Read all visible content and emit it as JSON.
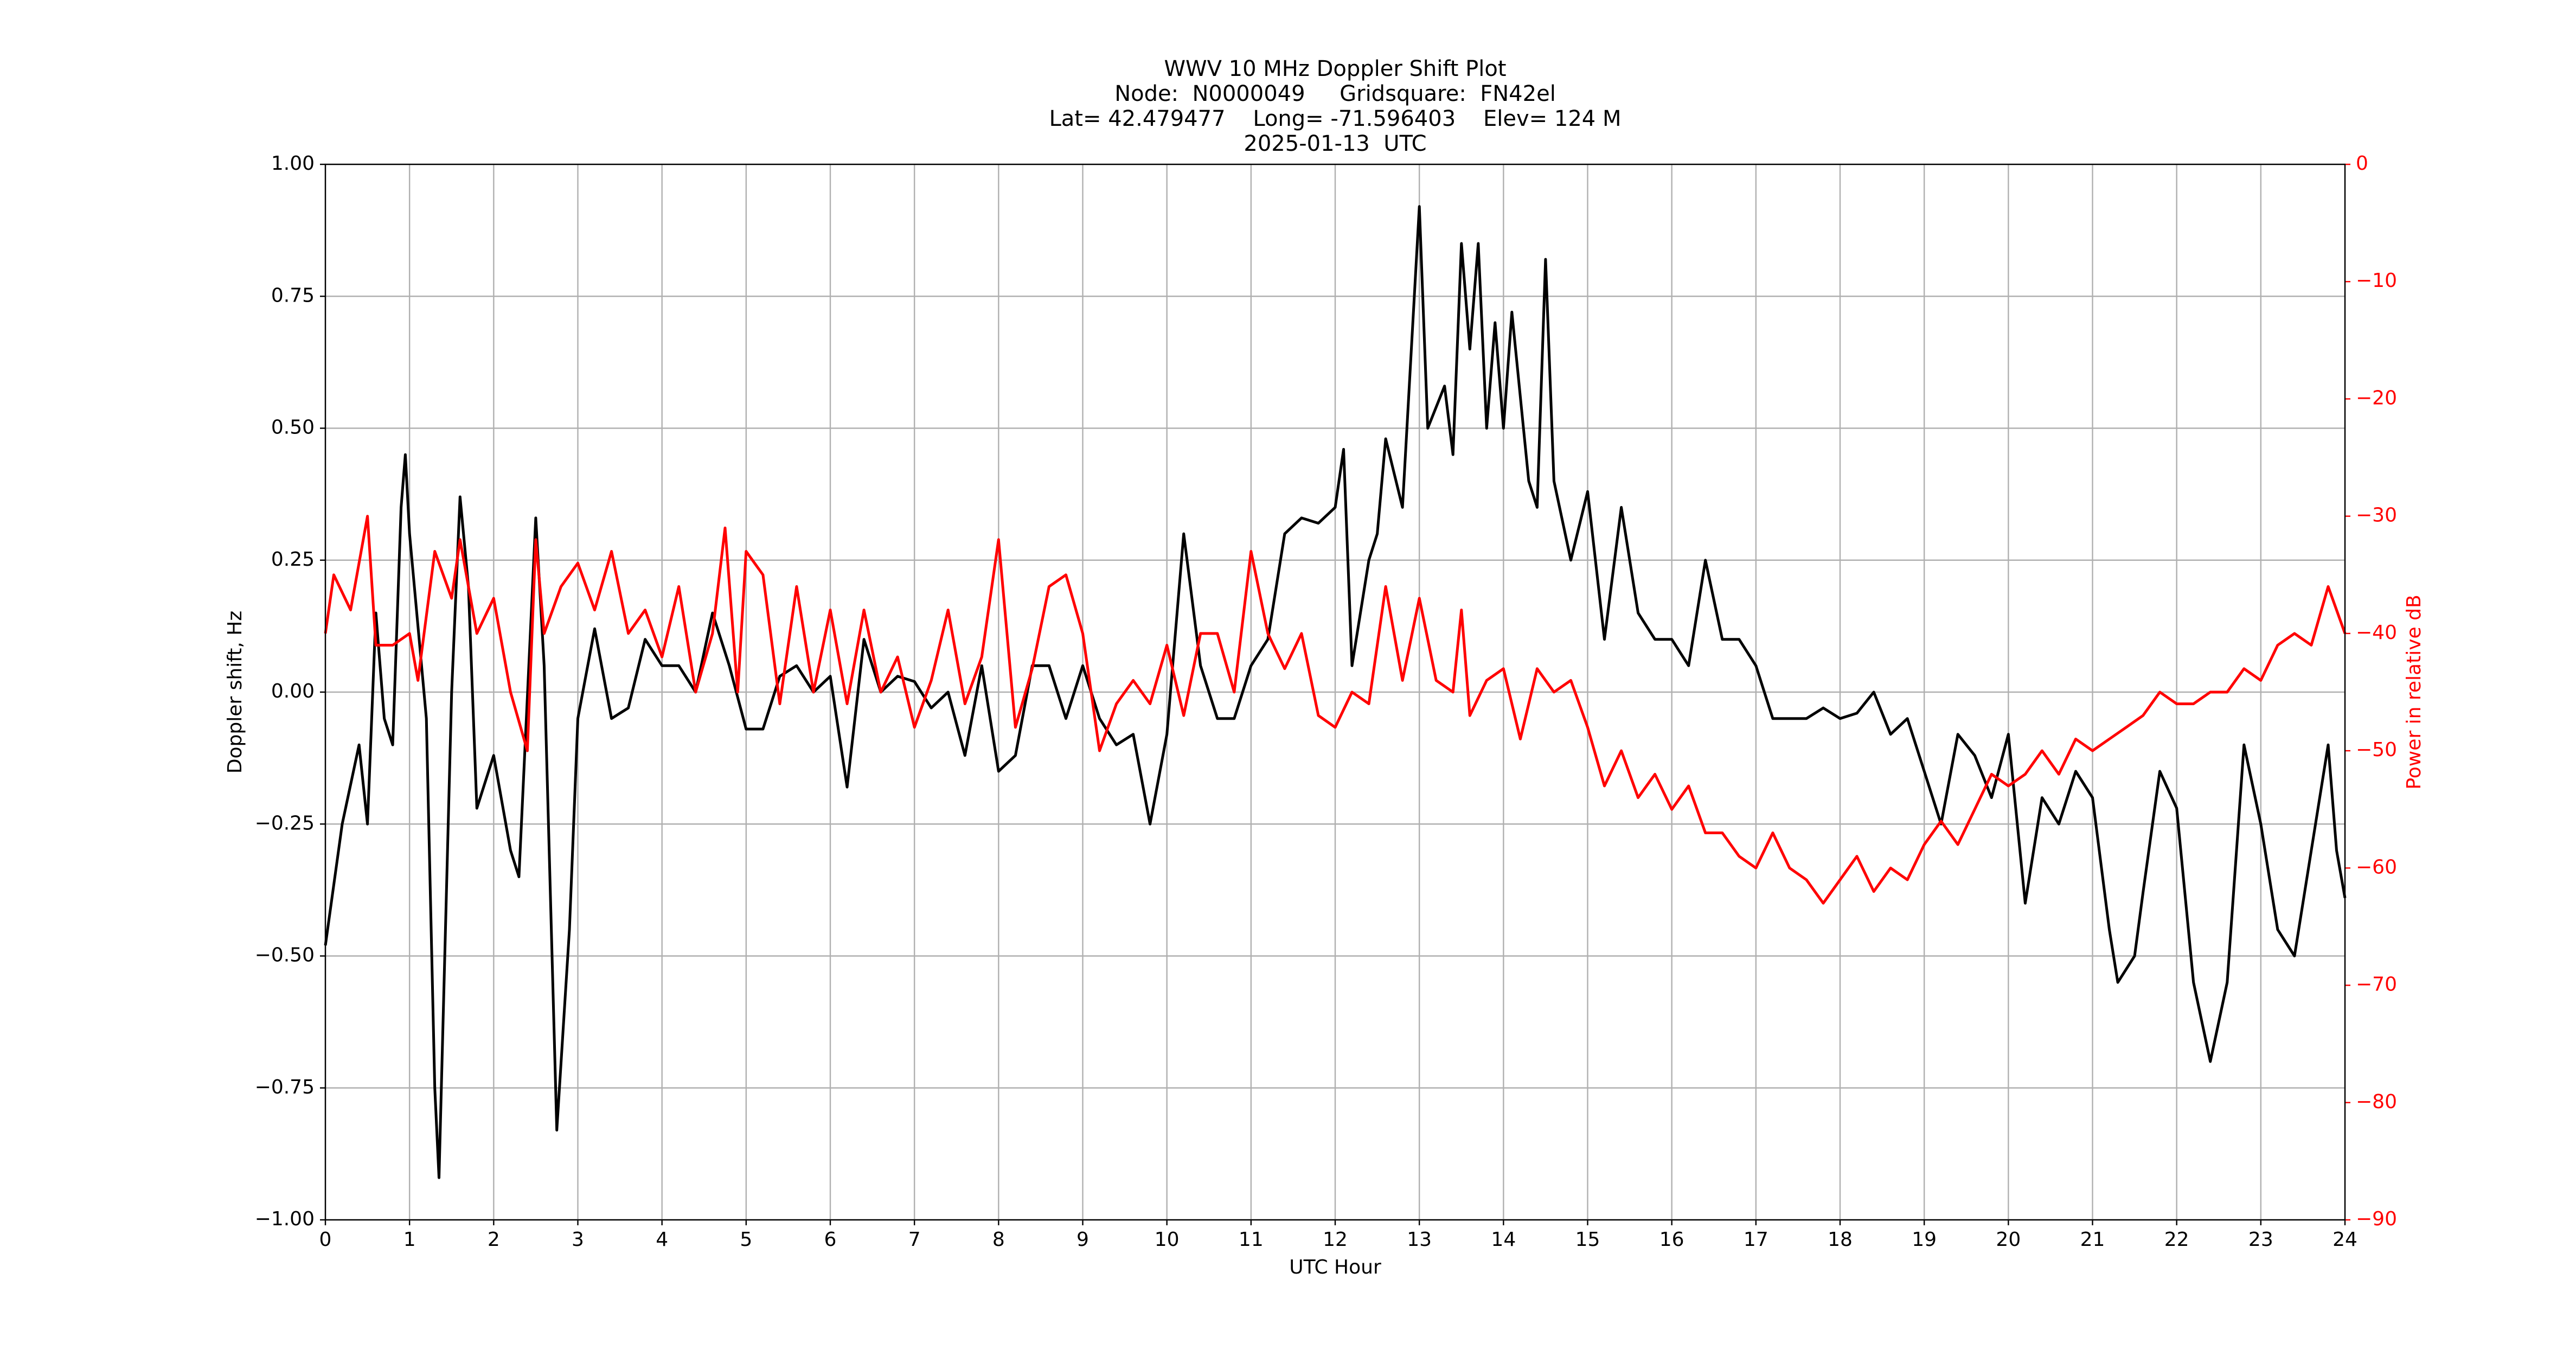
{
  "chart_data": {
    "type": "line",
    "title": "WWV 10 MHz Doppler Shift Plot",
    "subtitle": [
      "Node:  N0000049     Gridsquare:  FN42el",
      "Lat= 42.479477    Long= -71.596403    Elev= 124 M",
      "2025-01-13  UTC"
    ],
    "xlabel": "UTC Hour",
    "ylabel": "Doppler shift, Hz",
    "y2label": "Power in relative dB",
    "xlim": [
      0,
      24
    ],
    "xticks": [
      0,
      1,
      2,
      3,
      4,
      5,
      6,
      7,
      8,
      9,
      10,
      11,
      12,
      13,
      14,
      15,
      16,
      17,
      18,
      19,
      20,
      21,
      22,
      23,
      24
    ],
    "ylim": [
      -1,
      1
    ],
    "yticks": [
      {
        "value": -1,
        "label": "−1.00"
      },
      {
        "value": -0.75,
        "label": "−0.75"
      },
      {
        "value": -0.5,
        "label": "−0.50"
      },
      {
        "value": -0.25,
        "label": "−0.25"
      },
      {
        "value": 0,
        "label": "0.00"
      },
      {
        "value": 0.25,
        "label": "0.25"
      },
      {
        "value": 0.5,
        "label": "0.50"
      },
      {
        "value": 0.75,
        "label": "0.75"
      },
      {
        "value": 1,
        "label": "1.00"
      }
    ],
    "y2lim": [
      -90,
      0
    ],
    "y2ticks": [
      {
        "value": -90,
        "label": "−90"
      },
      {
        "value": -80,
        "label": "−80"
      },
      {
        "value": -70,
        "label": "−70"
      },
      {
        "value": -60,
        "label": "−60"
      },
      {
        "value": -50,
        "label": "−50"
      },
      {
        "value": -40,
        "label": "−40"
      },
      {
        "value": -30,
        "label": "−30"
      },
      {
        "value": -20,
        "label": "−20"
      },
      {
        "value": -10,
        "label": "−10"
      },
      0
    ],
    "grid": true,
    "series": [
      {
        "name": "Doppler shift",
        "color": "#000000",
        "axis": "y",
        "x": [
          0,
          0.2,
          0.4,
          0.5,
          0.6,
          0.7,
          0.8,
          0.9,
          0.95,
          1.0,
          1.2,
          1.3,
          1.35,
          1.5,
          1.6,
          1.7,
          1.8,
          2.0,
          2.2,
          2.3,
          2.5,
          2.6,
          2.75,
          2.9,
          3.0,
          3.2,
          3.4,
          3.6,
          3.8,
          4.0,
          4.2,
          4.4,
          4.6,
          4.8,
          5.0,
          5.2,
          5.4,
          5.6,
          5.8,
          6.0,
          6.2,
          6.4,
          6.6,
          6.8,
          7.0,
          7.2,
          7.4,
          7.6,
          7.8,
          8.0,
          8.2,
          8.4,
          8.6,
          8.8,
          9.0,
          9.2,
          9.4,
          9.6,
          9.8,
          10.0,
          10.2,
          10.4,
          10.6,
          10.8,
          11.0,
          11.2,
          11.4,
          11.6,
          11.8,
          12.0,
          12.1,
          12.2,
          12.4,
          12.5,
          12.6,
          12.8,
          13.0,
          13.1,
          13.3,
          13.4,
          13.5,
          13.6,
          13.7,
          13.8,
          13.9,
          14.0,
          14.1,
          14.3,
          14.4,
          14.5,
          14.6,
          14.8,
          15.0,
          15.2,
          15.4,
          15.6,
          15.8,
          16.0,
          16.2,
          16.4,
          16.6,
          16.8,
          17.0,
          17.2,
          17.4,
          17.6,
          17.8,
          18.0,
          18.2,
          18.4,
          18.6,
          18.8,
          19.0,
          19.2,
          19.4,
          19.6,
          19.8,
          20.0,
          20.2,
          20.4,
          20.6,
          20.8,
          21.0,
          21.2,
          21.3,
          21.5,
          21.6,
          21.8,
          22.0,
          22.2,
          22.4,
          22.6,
          22.8,
          23.0,
          23.2,
          23.4,
          23.6,
          23.8,
          23.9,
          24.0
        ],
        "values": [
          -0.48,
          -0.25,
          -0.1,
          -0.25,
          0.15,
          -0.05,
          -0.1,
          0.35,
          0.45,
          0.3,
          -0.05,
          -0.75,
          -0.92,
          0.0,
          0.37,
          0.2,
          -0.22,
          -0.12,
          -0.3,
          -0.35,
          0.33,
          0.05,
          -0.83,
          -0.45,
          -0.05,
          0.12,
          -0.05,
          -0.03,
          0.1,
          0.05,
          0.05,
          0.0,
          0.15,
          0.05,
          -0.07,
          -0.07,
          0.03,
          0.05,
          0.0,
          0.03,
          -0.18,
          0.1,
          0.0,
          0.03,
          0.02,
          -0.03,
          0.0,
          -0.12,
          0.05,
          -0.15,
          -0.12,
          0.05,
          0.05,
          -0.05,
          0.05,
          -0.05,
          -0.1,
          -0.08,
          -0.25,
          -0.08,
          0.3,
          0.05,
          -0.05,
          -0.05,
          0.05,
          0.1,
          0.3,
          0.33,
          0.32,
          0.35,
          0.46,
          0.05,
          0.25,
          0.3,
          0.48,
          0.35,
          0.92,
          0.5,
          0.58,
          0.45,
          0.85,
          0.65,
          0.85,
          0.5,
          0.7,
          0.5,
          0.72,
          0.4,
          0.35,
          0.82,
          0.4,
          0.25,
          0.38,
          0.1,
          0.35,
          0.15,
          0.1,
          0.1,
          0.05,
          0.25,
          0.1,
          0.1,
          0.05,
          -0.05,
          -0.05,
          -0.05,
          -0.03,
          -0.05,
          -0.04,
          0.0,
          -0.08,
          -0.05,
          -0.15,
          -0.25,
          -0.08,
          -0.12,
          -0.2,
          -0.08,
          -0.4,
          -0.2,
          -0.25,
          -0.15,
          -0.2,
          -0.45,
          -0.55,
          -0.5,
          -0.38,
          -0.15,
          -0.22,
          -0.55,
          -0.7,
          -0.55,
          -0.1,
          -0.25,
          -0.45,
          -0.5,
          -0.3,
          -0.1,
          -0.3,
          -0.39
        ]
      },
      {
        "name": "Power",
        "color": "#ff0000",
        "axis": "y2",
        "x": [
          0,
          0.1,
          0.3,
          0.5,
          0.6,
          0.8,
          1.0,
          1.1,
          1.3,
          1.5,
          1.6,
          1.8,
          2.0,
          2.2,
          2.4,
          2.5,
          2.6,
          2.8,
          3.0,
          3.2,
          3.4,
          3.6,
          3.8,
          4.0,
          4.2,
          4.4,
          4.6,
          4.75,
          4.9,
          5.0,
          5.2,
          5.4,
          5.6,
          5.8,
          6.0,
          6.2,
          6.4,
          6.6,
          6.8,
          7.0,
          7.2,
          7.4,
          7.6,
          7.8,
          8.0,
          8.2,
          8.4,
          8.6,
          8.8,
          9.0,
          9.2,
          9.4,
          9.6,
          9.8,
          10.0,
          10.2,
          10.4,
          10.6,
          10.8,
          11.0,
          11.2,
          11.4,
          11.6,
          11.8,
          12.0,
          12.2,
          12.4,
          12.6,
          12.8,
          13.0,
          13.2,
          13.4,
          13.5,
          13.6,
          13.8,
          14.0,
          14.2,
          14.4,
          14.6,
          14.8,
          15.0,
          15.2,
          15.4,
          15.6,
          15.8,
          16.0,
          16.2,
          16.4,
          16.6,
          16.8,
          17.0,
          17.2,
          17.4,
          17.6,
          17.8,
          18.0,
          18.2,
          18.4,
          18.6,
          18.8,
          19.0,
          19.2,
          19.4,
          19.6,
          19.8,
          20.0,
          20.2,
          20.4,
          20.6,
          20.8,
          21.0,
          21.2,
          21.4,
          21.6,
          21.8,
          22.0,
          22.2,
          22.4,
          22.6,
          22.8,
          23.0,
          23.2,
          23.4,
          23.6,
          23.8,
          24.0
        ],
        "values": [
          -40,
          -35,
          -38,
          -30,
          -41,
          -41,
          -40,
          -44,
          -33,
          -37,
          -32,
          -40,
          -37,
          -45,
          -50,
          -32,
          -40,
          -36,
          -34,
          -38,
          -33,
          -40,
          -38,
          -42,
          -36,
          -45,
          -40,
          -31,
          -45,
          -33,
          -35,
          -46,
          -36,
          -45,
          -38,
          -46,
          -38,
          -45,
          -42,
          -48,
          -44,
          -38,
          -46,
          -42,
          -32,
          -48,
          -43,
          -36,
          -35,
          -40,
          -50,
          -46,
          -44,
          -46,
          -41,
          -47,
          -40,
          -40,
          -45,
          -33,
          -40,
          -43,
          -40,
          -47,
          -48,
          -45,
          -46,
          -36,
          -44,
          -37,
          -44,
          -45,
          -38,
          -47,
          -44,
          -43,
          -49,
          -43,
          -45,
          -44,
          -48,
          -53,
          -50,
          -54,
          -52,
          -55,
          -53,
          -57,
          -57,
          -59,
          -60,
          -57,
          -60,
          -61,
          -63,
          -61,
          -59,
          -62,
          -60,
          -61,
          -58,
          -56,
          -58,
          -55,
          -52,
          -53,
          -52,
          -50,
          -52,
          -49,
          -50,
          -49,
          -48,
          -47,
          -45,
          -46,
          -46,
          -45,
          -45,
          -43,
          -44,
          -41,
          -40,
          -41,
          -36,
          -40
        ]
      }
    ]
  }
}
